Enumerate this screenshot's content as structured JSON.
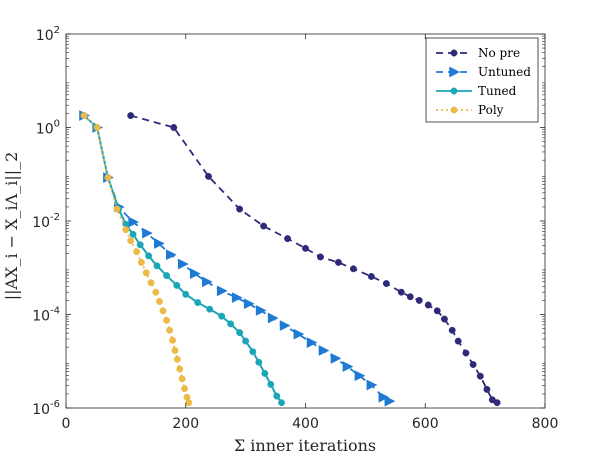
{
  "chart_data": {
    "type": "line",
    "title": "",
    "xlabel": "Σ inner iterations",
    "ylabel": "||AX_i − X_iΛ_i||_2",
    "xlim": [
      0,
      800
    ],
    "ylim_exponents": [
      -6,
      2
    ],
    "yscale": "log",
    "x_ticks": [
      0,
      200,
      400,
      600,
      800
    ],
    "y_ticks": [
      {
        "base": "10",
        "exp": "2",
        "value": 100
      },
      {
        "base": "10",
        "exp": "0",
        "value": 1
      },
      {
        "base": "10",
        "exp": "-2",
        "value": 0.01
      },
      {
        "base": "10",
        "exp": "-4",
        "value": 0.0001
      },
      {
        "base": "10",
        "exp": "-6",
        "value": 1e-06
      }
    ],
    "legend_position": "top-right",
    "series": [
      {
        "name": "No pre",
        "color": "#2e2a7a",
        "line": "dashed",
        "marker": "circle",
        "points": [
          [
            108,
            1.8
          ],
          [
            180,
            1.0
          ],
          [
            238,
            0.09
          ],
          [
            290,
            0.018
          ],
          [
            330,
            0.0078
          ],
          [
            370,
            0.0042
          ],
          [
            400,
            0.0026
          ],
          [
            425,
            0.0017
          ],
          [
            455,
            0.0013
          ],
          [
            480,
            0.00095
          ],
          [
            510,
            0.00065
          ],
          [
            535,
            0.00046
          ],
          [
            560,
            0.0003
          ],
          [
            575,
            0.00024
          ],
          [
            590,
            0.0002
          ],
          [
            605,
            0.00016
          ],
          [
            620,
            0.00012
          ],
          [
            632,
            8e-05
          ],
          [
            645,
            4.6e-05
          ],
          [
            655,
            2.7e-05
          ],
          [
            668,
            1.5e-05
          ],
          [
            680,
            8.5e-06
          ],
          [
            692,
            4.8e-06
          ],
          [
            703,
            2.5e-06
          ],
          [
            712,
            1.5e-06
          ],
          [
            720,
            1.3e-06
          ]
        ]
      },
      {
        "name": "Untuned",
        "color": "#1f7ad4",
        "line": "dashed",
        "marker": "triangle-right",
        "points": [
          [
            30,
            1.8
          ],
          [
            52,
            1.0
          ],
          [
            70,
            0.085
          ],
          [
            88,
            0.02
          ],
          [
            112,
            0.0095
          ],
          [
            135,
            0.0055
          ],
          [
            155,
            0.0033
          ],
          [
            175,
            0.0019
          ],
          [
            195,
            0.0012
          ],
          [
            215,
            0.00075
          ],
          [
            235,
            0.0005
          ],
          [
            260,
            0.00032
          ],
          [
            285,
            0.00023
          ],
          [
            305,
            0.00017
          ],
          [
            325,
            0.000122
          ],
          [
            345,
            8.4e-05
          ],
          [
            365,
            5.8e-05
          ],
          [
            388,
            3.8e-05
          ],
          [
            410,
            2.5e-05
          ],
          [
            430,
            1.7e-05
          ],
          [
            450,
            1.15e-05
          ],
          [
            470,
            7.7e-06
          ],
          [
            490,
            4.9e-06
          ],
          [
            510,
            3.1e-06
          ],
          [
            530,
            1.7e-06
          ],
          [
            540,
            1.4e-06
          ]
        ]
      },
      {
        "name": "Tuned",
        "color": "#1aa6b7",
        "line": "solid",
        "marker": "circle",
        "points": [
          [
            30,
            1.8
          ],
          [
            52,
            1.0
          ],
          [
            70,
            0.085
          ],
          [
            88,
            0.018
          ],
          [
            100,
            0.0085
          ],
          [
            112,
            0.0052
          ],
          [
            124,
            0.0031
          ],
          [
            138,
            0.0018
          ],
          [
            152,
            0.0011
          ],
          [
            168,
            0.00068
          ],
          [
            185,
            0.00042
          ],
          [
            200,
            0.00027
          ],
          [
            220,
            0.00018
          ],
          [
            240,
            0.00013
          ],
          [
            260,
            9.2e-05
          ],
          [
            275,
            6.3e-05
          ],
          [
            290,
            4.1e-05
          ],
          [
            300,
            2.7e-05
          ],
          [
            312,
            1.6e-05
          ],
          [
            322,
            9.5e-06
          ],
          [
            332,
            5.5e-06
          ],
          [
            342,
            3.2e-06
          ],
          [
            352,
            1.8e-06
          ],
          [
            360,
            1.3e-06
          ]
        ]
      },
      {
        "name": "Poly",
        "color": "#edb947",
        "line": "dotted",
        "marker": "circle",
        "points": [
          [
            30,
            1.8
          ],
          [
            52,
            1.0
          ],
          [
            70,
            0.085
          ],
          [
            85,
            0.018
          ],
          [
            100,
            0.0065
          ],
          [
            108,
            0.0038
          ],
          [
            118,
            0.0022
          ],
          [
            126,
            0.0013
          ],
          [
            134,
            0.00078
          ],
          [
            142,
            0.00048
          ],
          [
            150,
            0.0003
          ],
          [
            156,
            0.00019
          ],
          [
            162,
            0.00012
          ],
          [
            168,
            7.5e-05
          ],
          [
            173,
            4.6e-05
          ],
          [
            178,
            2.8e-05
          ],
          [
            182,
            1.7e-05
          ],
          [
            186,
            1.1e-05
          ],
          [
            190,
            6.8e-06
          ],
          [
            194,
            4.2e-06
          ],
          [
            198,
            2.6e-06
          ],
          [
            202,
            1.7e-06
          ],
          [
            205,
            1.3e-06
          ]
        ]
      }
    ]
  }
}
